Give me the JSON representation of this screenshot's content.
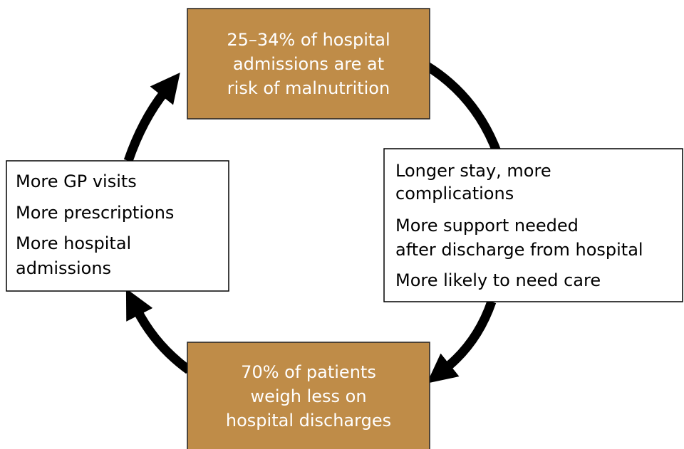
{
  "nodes": [
    {
      "lines": [
        "25–34% of hospital",
        "admissions are at",
        "risk of malnutrition"
      ]
    },
    {
      "lines": [
        "Longer stay, more",
        "complications",
        "More support needed",
        "after discharge from hospital",
        "More likely to need care"
      ]
    },
    {
      "lines": [
        "70% of patients",
        "weigh less on",
        "hospital discharges"
      ]
    },
    {
      "lines": [
        "More GP visits",
        "More prescriptions",
        "More hospital",
        "admissions"
      ]
    }
  ]
}
